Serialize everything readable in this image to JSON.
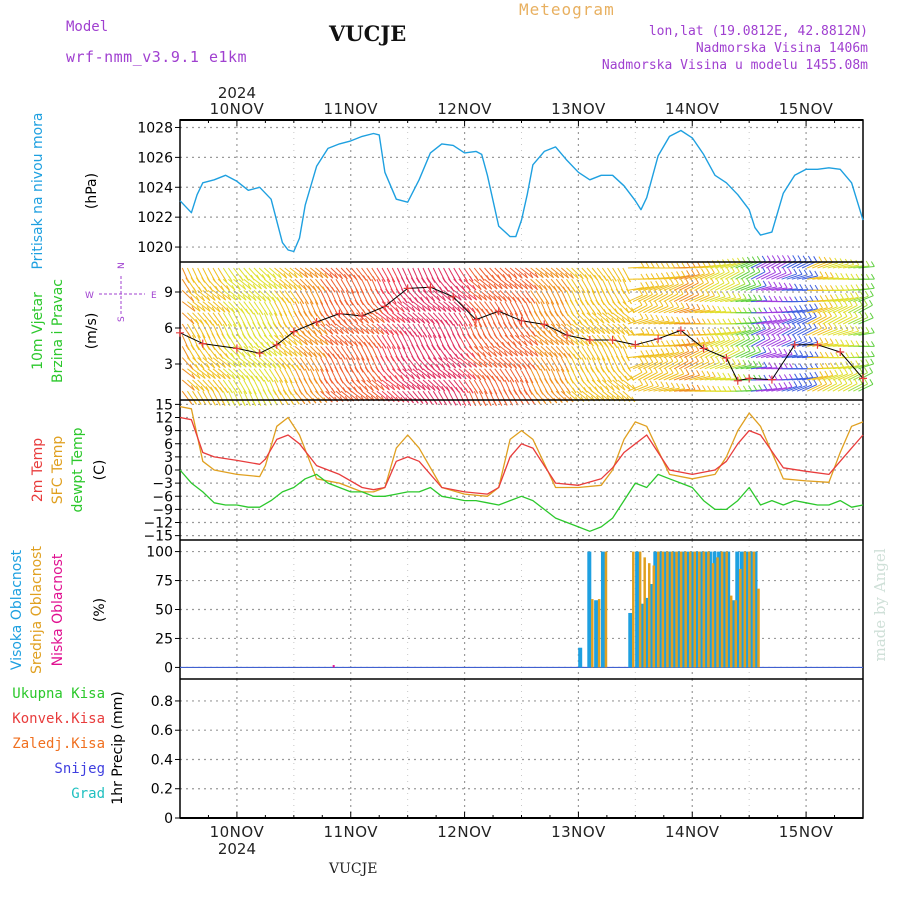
{
  "header": {
    "model_label": "Model",
    "model_name": "wrf-nmm_v3.9.1  e1km",
    "station": "VUCJE",
    "meteogram": "Meteogram",
    "lonlat": "lon,lat (19.0812E, 42.8812N)",
    "elevation": "Nadmorska Visina 1406m",
    "elevation_model": "Nadmorska Visina u modelu 1455.08m",
    "credit": "made by Angel",
    "footer_station": "VUCJE"
  },
  "colors": {
    "pressure": "#1ea0e0",
    "t2m": "#e83c3c",
    "sfc": "#e0a020",
    "dewpt": "#2cc82c",
    "high_cloud": "#1ea0e0",
    "mid_cloud": "#e0a020",
    "low_cloud": "#e01090",
    "total_precip": "#2cc82c",
    "conv_precip": "#e83c3c",
    "frozen_precip": "#f07020",
    "snow": "#4040e0",
    "grad": "#20c0c0",
    "label_purple": "#a040d0",
    "label_orange": "#e8b060"
  },
  "chart_data": [
    {
      "type": "line",
      "panel": "pressure",
      "ylabel_lines": [
        "Pritisak na nivou mora",
        "(hPa)"
      ],
      "x_unit": "days from 2024-11-10 00:00",
      "xlim": [
        -0.5,
        5.5
      ],
      "ylim": [
        1019,
        1028.5
      ],
      "yticks": [
        1020,
        1022,
        1024,
        1026,
        1028
      ],
      "series": [
        {
          "x": [
            -0.5,
            -0.4,
            -0.35,
            -0.3,
            -0.2,
            -0.1,
            0.0,
            0.1,
            0.2,
            0.3,
            0.4,
            0.45,
            0.5,
            0.55,
            0.6,
            0.7,
            0.8,
            0.9,
            1.0,
            1.1,
            1.2,
            1.25,
            1.3,
            1.4,
            1.5,
            1.6,
            1.7,
            1.8,
            1.9,
            2.0,
            2.1,
            2.15,
            2.2,
            2.3,
            2.4,
            2.45,
            2.5,
            2.55,
            2.6,
            2.7,
            2.8,
            2.9,
            3.0,
            3.1,
            3.2,
            3.3,
            3.4,
            3.5,
            3.55,
            3.6,
            3.7,
            3.8,
            3.9,
            4.0,
            4.1,
            4.2,
            4.3,
            4.4,
            4.5,
            4.55,
            4.6,
            4.7,
            4.8,
            4.9,
            5.0,
            5.1,
            5.2,
            5.3,
            5.4,
            5.5
          ],
          "y": [
            1023.1,
            1022.3,
            1023.5,
            1024.3,
            1024.5,
            1024.8,
            1024.4,
            1023.8,
            1024.0,
            1023.2,
            1020.3,
            1019.8,
            1019.7,
            1020.6,
            1022.8,
            1025.4,
            1026.6,
            1026.9,
            1027.1,
            1027.4,
            1027.6,
            1027.5,
            1025.0,
            1023.2,
            1023.0,
            1024.5,
            1026.3,
            1026.9,
            1026.8,
            1026.3,
            1026.4,
            1026.2,
            1024.8,
            1021.4,
            1020.7,
            1020.7,
            1021.8,
            1023.5,
            1025.5,
            1026.4,
            1026.7,
            1025.8,
            1025.0,
            1024.5,
            1024.8,
            1024.8,
            1024.1,
            1023.1,
            1022.5,
            1023.3,
            1026.1,
            1027.4,
            1027.8,
            1027.3,
            1026.2,
            1024.8,
            1024.3,
            1023.5,
            1022.5,
            1021.3,
            1020.8,
            1021.0,
            1023.6,
            1024.8,
            1025.2,
            1025.2,
            1025.3,
            1025.2,
            1024.3,
            1021.8
          ]
        }
      ]
    },
    {
      "type": "line",
      "panel": "wind",
      "ylabel_lines": [
        "10m Vjetar",
        "Brzina i Pravac",
        "(m/s)"
      ],
      "compass": [
        "N",
        "S",
        "W",
        "E"
      ],
      "xlim": [
        -0.5,
        5.5
      ],
      "ylim": [
        0,
        11.5
      ],
      "yticks": [
        3,
        6,
        9
      ],
      "series": [
        {
          "name": "speed",
          "x": [
            -0.5,
            -0.3,
            0.0,
            0.2,
            0.35,
            0.5,
            0.7,
            0.9,
            1.1,
            1.3,
            1.5,
            1.7,
            1.9,
            2.1,
            2.3,
            2.5,
            2.7,
            2.9,
            3.1,
            3.3,
            3.5,
            3.7,
            3.9,
            4.1,
            4.3,
            4.4,
            4.5,
            4.7,
            4.9,
            5.1,
            5.3,
            5.5
          ],
          "y": [
            5.6,
            4.7,
            4.3,
            3.9,
            4.6,
            5.7,
            6.5,
            7.2,
            7.0,
            7.8,
            9.3,
            9.4,
            8.6,
            6.7,
            7.4,
            6.6,
            6.3,
            5.4,
            5.0,
            5.0,
            4.6,
            5.1,
            5.8,
            4.3,
            3.5,
            1.6,
            1.8,
            1.7,
            4.6,
            4.6,
            4.0,
            1.8
          ]
        }
      ],
      "barb_colors": [
        "#20c0e0",
        "#20c040",
        "#60e060",
        "#c0e040",
        "#f0c020",
        "#f08020",
        "#f04040",
        "#4060e0",
        "#a040e0"
      ]
    },
    {
      "type": "line",
      "panel": "temperature",
      "ylabel_lines": [
        "2m Temp",
        "SFC Temp",
        "dewpt Temp",
        "(C)"
      ],
      "xlim": [
        -0.5,
        5.5
      ],
      "ylim": [
        -16,
        16
      ],
      "yticks": [
        15,
        12,
        9,
        6,
        3,
        0,
        -3,
        -6,
        -9,
        -12,
        -15
      ],
      "series": [
        {
          "name": "2m Temp",
          "x": [
            -0.5,
            -0.4,
            -0.3,
            -0.2,
            0.0,
            0.2,
            0.25,
            0.35,
            0.45,
            0.55,
            0.7,
            0.9,
            1.1,
            1.2,
            1.3,
            1.4,
            1.5,
            1.6,
            1.8,
            2.0,
            2.2,
            2.3,
            2.4,
            2.5,
            2.6,
            2.8,
            3.0,
            3.2,
            3.3,
            3.4,
            3.5,
            3.6,
            3.8,
            4.0,
            4.2,
            4.3,
            4.4,
            4.5,
            4.6,
            4.8,
            5.0,
            5.2,
            5.3,
            5.4,
            5.5
          ],
          "y": [
            12.0,
            11.5,
            4.0,
            3.0,
            2.2,
            1.3,
            2.5,
            7.0,
            8.0,
            6.0,
            1.0,
            -1.0,
            -4.0,
            -4.5,
            -4.0,
            2.0,
            3.0,
            2.0,
            -4.0,
            -5.0,
            -5.5,
            -4.0,
            3.0,
            6.0,
            5.0,
            -3.0,
            -3.5,
            -2.0,
            0.5,
            4.0,
            6.0,
            8.0,
            0.0,
            -1.0,
            0.0,
            2.0,
            6.0,
            9.0,
            8.0,
            0.5,
            -0.3,
            -1.0,
            2.0,
            5.0,
            8.0
          ]
        },
        {
          "name": "SFC Temp",
          "x": [
            -0.5,
            -0.4,
            -0.3,
            -0.2,
            0.0,
            0.2,
            0.25,
            0.35,
            0.45,
            0.55,
            0.7,
            0.9,
            1.1,
            1.2,
            1.3,
            1.4,
            1.5,
            1.6,
            1.8,
            2.0,
            2.2,
            2.3,
            2.4,
            2.5,
            2.6,
            2.8,
            3.0,
            3.2,
            3.3,
            3.4,
            3.5,
            3.6,
            3.8,
            4.0,
            4.2,
            4.3,
            4.4,
            4.5,
            4.6,
            4.8,
            5.0,
            5.2,
            5.3,
            5.4,
            5.5
          ],
          "y": [
            14.5,
            14.0,
            2.0,
            0.0,
            -1.0,
            -1.5,
            1.0,
            10.0,
            12.0,
            8.0,
            -2.0,
            -3.0,
            -5.0,
            -5.0,
            -4.0,
            5.0,
            8.0,
            5.0,
            -4.0,
            -5.5,
            -6.0,
            -4.0,
            7.0,
            9.0,
            7.0,
            -4.0,
            -4.0,
            -3.5,
            0.0,
            7.0,
            11.0,
            10.0,
            -1.0,
            -2.0,
            -1.0,
            3.0,
            9.0,
            13.0,
            10.0,
            -2.0,
            -2.5,
            -2.8,
            4.0,
            10.0,
            11.0
          ]
        },
        {
          "name": "dewpt Temp",
          "x": [
            -0.5,
            -0.4,
            -0.3,
            -0.2,
            -0.1,
            0.0,
            0.1,
            0.2,
            0.3,
            0.4,
            0.5,
            0.6,
            0.7,
            0.8,
            0.9,
            1.0,
            1.1,
            1.2,
            1.3,
            1.4,
            1.5,
            1.6,
            1.7,
            1.8,
            1.9,
            2.0,
            2.1,
            2.2,
            2.3,
            2.4,
            2.5,
            2.6,
            2.7,
            2.8,
            2.9,
            3.0,
            3.1,
            3.2,
            3.3,
            3.4,
            3.5,
            3.6,
            3.7,
            3.8,
            3.9,
            4.0,
            4.1,
            4.2,
            4.3,
            4.4,
            4.5,
            4.6,
            4.7,
            4.8,
            4.9,
            5.0,
            5.1,
            5.2,
            5.3,
            5.4,
            5.5
          ],
          "y": [
            0.0,
            -3.0,
            -5.0,
            -7.5,
            -8.0,
            -8.0,
            -8.5,
            -8.5,
            -7.0,
            -5.0,
            -4.0,
            -2.0,
            -1.0,
            -3.0,
            -4.0,
            -5.0,
            -5.0,
            -6.0,
            -6.0,
            -5.5,
            -5.0,
            -5.0,
            -4.0,
            -6.0,
            -6.5,
            -7.0,
            -7.0,
            -7.5,
            -8.0,
            -7.0,
            -6.0,
            -7.0,
            -9.0,
            -11.0,
            -12.0,
            -13.0,
            -14.0,
            -13.0,
            -11.0,
            -7.0,
            -3.0,
            -4.0,
            -1.0,
            -2.0,
            -3.0,
            -4.0,
            -7.0,
            -9.0,
            -9.0,
            -7.0,
            -4.0,
            -8.0,
            -7.0,
            -8.0,
            -7.0,
            -7.5,
            -8.0,
            -8.0,
            -7.0,
            -8.5,
            -8.0
          ]
        }
      ]
    },
    {
      "type": "bar",
      "panel": "cloud",
      "ylabel_lines": [
        "Visoka Oblacnost",
        "Srednja Oblacnost",
        "Niska Oblacnost",
        "(%)"
      ],
      "xlim": [
        -0.5,
        5.5
      ],
      "ylim": [
        -10,
        110
      ],
      "yticks": [
        0,
        25,
        50,
        75,
        100
      ],
      "series": [
        {
          "name": "Visoka Oblacnost",
          "x": [
            3.02,
            3.1,
            3.16,
            3.22,
            3.46,
            3.52,
            3.56,
            3.6,
            3.64,
            3.68,
            3.72,
            3.76,
            3.8,
            3.84,
            3.88,
            3.92,
            3.96,
            4.0,
            4.04,
            4.08,
            4.12,
            4.16,
            4.2,
            4.24,
            4.28,
            4.32,
            4.36,
            4.4,
            4.44,
            4.48,
            4.52,
            4.56
          ],
          "y": [
            17,
            100,
            58,
            100,
            47,
            100,
            55,
            60,
            72,
            100,
            100,
            100,
            100,
            100,
            100,
            100,
            100,
            100,
            100,
            100,
            100,
            100,
            100,
            100,
            100,
            100,
            58,
            100,
            100,
            100,
            100,
            100
          ]
        },
        {
          "name": "Srednja Oblacnost",
          "x": [
            3.12,
            3.18,
            3.24,
            3.48,
            3.54,
            3.58,
            3.62,
            3.66,
            3.7,
            3.74,
            3.78,
            3.82,
            3.86,
            3.9,
            3.94,
            3.98,
            4.02,
            4.06,
            4.1,
            4.14,
            4.18,
            4.22,
            4.26,
            4.3,
            4.34,
            4.38,
            4.42,
            4.46,
            4.5,
            4.54,
            4.58
          ],
          "y": [
            59,
            59,
            100,
            100,
            100,
            95,
            90,
            88,
            100,
            100,
            100,
            100,
            100,
            100,
            100,
            100,
            100,
            100,
            100,
            100,
            90,
            95,
            100,
            100,
            62,
            58,
            85,
            100,
            100,
            100,
            68
          ]
        },
        {
          "name": "Niska Oblacnost",
          "x": [
            0.85
          ],
          "y": [
            2
          ]
        }
      ]
    },
    {
      "type": "bar",
      "panel": "precip",
      "ylabel_lines": [
        "1hr Precip (mm)"
      ],
      "legend": [
        "Ukupna Kisa",
        "Konvek.Kisa",
        "Zaledj.Kisa",
        "Snijeg",
        "Grad"
      ],
      "xlim": [
        -0.5,
        5.5
      ],
      "ylim": [
        0,
        0.95
      ],
      "yticks": [
        0,
        0.2,
        0.4,
        0.6,
        0.8
      ],
      "series": [
        {
          "name": "Ukupna Kisa",
          "x": [],
          "y": []
        }
      ]
    }
  ],
  "axis": {
    "day_labels": [
      "10NOV",
      "11NOV",
      "12NOV",
      "13NOV",
      "14NOV",
      "15NOV"
    ],
    "year_label": "2024"
  }
}
